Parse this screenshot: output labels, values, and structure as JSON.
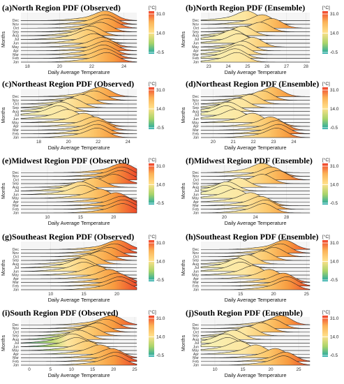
{
  "legend": {
    "unit": "[°C]",
    "ticks": [
      "31.0",
      "14.0",
      "-0.5"
    ],
    "colors": [
      "#1aa6a6",
      "#a9d46a",
      "#ffe08a",
      "#fbb257",
      "#f0442d"
    ]
  },
  "chart_data": [
    {
      "type": "ridgeline",
      "label": "(a)",
      "title": "North Region PDF (Observed)",
      "xlabel": "Daily Average Temperature",
      "ylabel": "Months",
      "xlim": [
        17.6,
        24.8
      ],
      "xticks": [
        18,
        20,
        22,
        24
      ],
      "months": [
        "Jan",
        "Feb",
        "Mar",
        "Apr",
        "May",
        "Jun",
        "Jul",
        "Aug",
        "Sep",
        "Oct",
        "Nov",
        "Dec"
      ],
      "modes": [
        23.0,
        22.9,
        22.8,
        22.9,
        22.7,
        22.2,
        21.8,
        22.0,
        22.6,
        23.0,
        22.9,
        22.9
      ]
    },
    {
      "type": "ridgeline",
      "label": "(b)",
      "title": "North Region PDF (Ensemble)",
      "xlabel": "Daily Average Temperature",
      "ylabel": "Months",
      "xlim": [
        22.6,
        28.2
      ],
      "xticks": [
        23,
        24,
        25,
        26,
        27,
        28
      ],
      "months": [
        "Jan",
        "Feb",
        "Mar",
        "Apr",
        "May",
        "Jun",
        "Jul",
        "Aug",
        "Sep",
        "Oct",
        "Nov",
        "Dec"
      ],
      "modes": [
        24.5,
        24.4,
        24.6,
        24.8,
        25.3,
        24.6,
        24.3,
        24.8,
        25.7,
        26.3,
        25.8,
        25.0
      ]
    },
    {
      "type": "ridgeline",
      "label": "(c)",
      "title": "Northeast Region PDF (Observed)",
      "xlabel": "Daily Average Temperature",
      "ylabel": "Months",
      "xlim": [
        16.8,
        24.6
      ],
      "xticks": [
        18,
        20,
        22,
        24
      ],
      "months": [
        "Jan",
        "Feb",
        "Mar",
        "Apr",
        "May",
        "Jun",
        "Jul",
        "Aug",
        "Sep",
        "Oct",
        "Nov",
        "Dec"
      ],
      "modes": [
        22.0,
        22.0,
        22.1,
        21.8,
        21.1,
        20.0,
        19.4,
        19.6,
        20.3,
        21.0,
        21.8,
        22.2
      ]
    },
    {
      "type": "ridgeline",
      "label": "(d)",
      "title": "Northeast Region PDF (Ensemble)",
      "xlabel": "Daily Average Temperature",
      "ylabel": "Months",
      "xlim": [
        19.4,
        24.8
      ],
      "xticks": [
        20,
        21,
        22,
        23,
        24
      ],
      "months": [
        "Jan",
        "Feb",
        "Mar",
        "Apr",
        "May",
        "Jun",
        "Jul",
        "Aug",
        "Sep",
        "Oct",
        "Nov",
        "Dec"
      ],
      "modes": [
        23.2,
        23.3,
        23.2,
        22.9,
        22.0,
        21.1,
        20.7,
        20.8,
        21.3,
        21.9,
        22.5,
        23.0
      ]
    },
    {
      "type": "ridgeline",
      "label": "(e)",
      "title": "Midwest Region PDF (Observed)",
      "xlabel": "Daily Average Temperature",
      "ylabel": "Months",
      "xlim": [
        6.0,
        23.5
      ],
      "xticks": [
        10,
        15,
        20
      ],
      "months": [
        "Jan",
        "Feb",
        "Mar",
        "Apr",
        "May",
        "Jun",
        "Jul",
        "Aug",
        "Sep",
        "Oct",
        "Nov",
        "Dec"
      ],
      "modes": [
        21.5,
        21.6,
        21.4,
        20.5,
        18.0,
        15.5,
        15.2,
        17.2,
        20.2,
        21.2,
        21.4,
        21.5
      ]
    },
    {
      "type": "ridgeline",
      "label": "(f)",
      "title": "Midwest Region PDF (Ensemble)",
      "xlabel": "Daily Average Temperature",
      "ylabel": "Months",
      "xlim": [
        17.0,
        31.0
      ],
      "xticks": [
        20,
        24,
        28
      ],
      "months": [
        "Jan",
        "Feb",
        "Mar",
        "Apr",
        "May",
        "Jun",
        "Jul",
        "Aug",
        "Sep",
        "Oct",
        "Nov",
        "Dec"
      ],
      "modes": [
        25.2,
        25.4,
        24.8,
        23.5,
        21.5,
        20.2,
        20.5,
        22.0,
        25.0,
        27.0,
        26.2,
        25.0
      ]
    },
    {
      "type": "ridgeline",
      "label": "(g)",
      "title": "Southeast Region PDF (Observed)",
      "xlabel": "Daily Average Temperature",
      "ylabel": "Months",
      "xlim": [
        5.5,
        23.0
      ],
      "xticks": [
        10,
        15,
        20
      ],
      "months": [
        "Jan",
        "Feb",
        "Mar",
        "Apr",
        "May",
        "Jun",
        "Jul",
        "Aug",
        "Sep",
        "Oct",
        "Nov",
        "Dec"
      ],
      "modes": [
        20.5,
        20.6,
        20.2,
        19.0,
        17.0,
        15.2,
        14.8,
        16.0,
        17.8,
        19.0,
        19.8,
        20.3
      ]
    },
    {
      "type": "ridgeline",
      "label": "(h)",
      "title": "Southeast Region PDF (Ensemble)",
      "xlabel": "Daily Average Temperature",
      "ylabel": "Months",
      "xlim": [
        9.0,
        25.5
      ],
      "xticks": [
        15,
        20,
        25
      ],
      "months": [
        "Jan",
        "Feb",
        "Mar",
        "Apr",
        "May",
        "Jun",
        "Jul",
        "Aug",
        "Sep",
        "Oct",
        "Nov",
        "Dec"
      ],
      "modes": [
        22.0,
        22.2,
        21.6,
        19.5,
        17.0,
        15.2,
        14.8,
        16.2,
        18.5,
        20.2,
        21.2,
        21.8
      ]
    },
    {
      "type": "ridgeline",
      "label": "(i)",
      "title": "South Region PDF (Observed)",
      "xlabel": "Daily Average Temperature",
      "ylabel": "Months",
      "xlim": [
        -2.0,
        25.5
      ],
      "xticks": [
        0,
        5,
        10,
        15,
        20,
        25
      ],
      "months": [
        "Jan",
        "Feb",
        "Mar",
        "Apr",
        "May",
        "Jun",
        "Jul",
        "Aug",
        "Sep",
        "Oct",
        "Nov",
        "Dec"
      ],
      "modes": [
        20.5,
        20.8,
        19.8,
        17.0,
        14.0,
        11.5,
        10.5,
        12.0,
        14.5,
        16.5,
        18.5,
        19.8
      ]
    },
    {
      "type": "ridgeline",
      "label": "(j)",
      "title": "South Region PDF (Ensemble)",
      "xlabel": "Daily Average Temperature",
      "ylabel": "Months",
      "xlim": [
        7.5,
        27.0
      ],
      "xticks": [
        10,
        15,
        20,
        25
      ],
      "months": [
        "Jan",
        "Feb",
        "Mar",
        "Apr",
        "May",
        "Jun",
        "Jul",
        "Aug",
        "Sep",
        "Oct",
        "Nov",
        "Dec"
      ],
      "modes": [
        22.5,
        22.8,
        21.0,
        17.5,
        14.5,
        12.5,
        12.0,
        13.5,
        16.0,
        18.5,
        20.5,
        22.0
      ]
    }
  ]
}
